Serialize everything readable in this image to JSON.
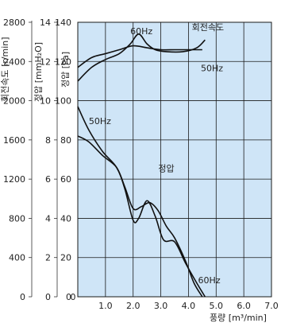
{
  "chart_data": {
    "type": "line",
    "x_axis": {
      "label": "풍량 [m³/min]",
      "min": 0,
      "max": 7,
      "ticks": [
        "1.0",
        "2.0",
        "3.0",
        "4.0",
        "5.0",
        "6.0",
        "7.0"
      ],
      "tick_values": [
        1,
        2,
        3,
        4,
        5,
        6,
        7
      ],
      "zero_label": "0"
    },
    "y_axes": [
      {
        "label": "회전속도 [r/min]",
        "min": 0,
        "max": 2800,
        "ticks": [
          "0",
          "400",
          "800",
          "1200",
          "1600",
          "2000",
          "2400",
          "2800"
        ],
        "tick_values": [
          0,
          400,
          800,
          1200,
          1600,
          2000,
          2400,
          2800
        ]
      },
      {
        "label": "정압 [mmH₂O]",
        "min": 0,
        "max": 14,
        "ticks": [
          "0",
          "2",
          "4",
          "6",
          "8",
          "10",
          "12",
          "14"
        ],
        "tick_values": [
          0,
          2,
          4,
          6,
          8,
          10,
          12,
          14
        ]
      },
      {
        "label": "정압 [Pa]",
        "min": 0,
        "max": 140,
        "ticks": [
          "20",
          "40",
          "60",
          "80",
          "100",
          "120",
          "140"
        ],
        "tick_values": [
          20,
          40,
          60,
          80,
          100,
          120,
          140
        ],
        "zero_label": "0"
      }
    ],
    "grid": true,
    "background": "#cfe5f7",
    "curve_labels": [
      {
        "text": "60Hz",
        "x": 2.3,
        "y": 134
      },
      {
        "text": "회전속도",
        "x": 4.7,
        "y": 136
      },
      {
        "text": "50Hz",
        "x": 4.85,
        "y": 115
      },
      {
        "text": "50Hz",
        "x": 0.8,
        "y": 88
      },
      {
        "text": "정압",
        "x": 3.2,
        "y": 64
      },
      {
        "text": "60Hz",
        "x": 4.75,
        "y": 7
      }
    ],
    "series": [
      {
        "group": "speed",
        "hz": "60Hz",
        "unit": "Pa-scale",
        "x": [
          0,
          0.5,
          1.0,
          1.5,
          1.9,
          2.2,
          2.5,
          2.8,
          3.2,
          3.8,
          4.3,
          4.6
        ],
        "y": [
          110,
          117,
          121,
          124,
          129,
          134,
          129,
          126,
          125,
          125,
          127,
          131
        ]
      },
      {
        "group": "speed",
        "hz": "50Hz",
        "unit": "Pa-scale",
        "x": [
          0,
          0.5,
          1.0,
          1.5,
          2.0,
          2.5,
          3.0,
          3.5,
          4.0,
          4.5
        ],
        "y": [
          117,
          122,
          124,
          126,
          128,
          127,
          126,
          126,
          126,
          126
        ]
      },
      {
        "group": "pressure",
        "hz": "60Hz",
        "unit": "Pa",
        "x": [
          0,
          0.4,
          0.9,
          1.4,
          1.7,
          2.0,
          2.2,
          2.5,
          2.8,
          3.1,
          3.5,
          3.9,
          4.3,
          4.6
        ],
        "y": [
          97,
          85,
          74,
          66,
          55,
          39,
          40,
          49,
          41,
          29,
          28,
          17,
          7,
          0
        ]
      },
      {
        "group": "pressure",
        "hz": "50Hz",
        "unit": "Pa",
        "x": [
          0,
          0.4,
          0.9,
          1.4,
          1.7,
          2.0,
          2.3,
          2.6,
          2.9,
          3.2,
          3.5,
          3.9,
          4.2,
          4.5
        ],
        "y": [
          82,
          79,
          72,
          66,
          56,
          45,
          46,
          48,
          44,
          36,
          30,
          18,
          7,
          0
        ]
      }
    ]
  }
}
